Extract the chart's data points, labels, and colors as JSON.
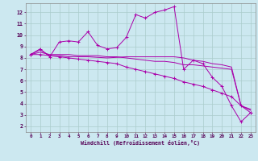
{
  "xlabel": "Windchill (Refroidissement éolien,°C)",
  "bg_color": "#cce8f0",
  "grid_color": "#aacccc",
  "line_color": "#aa00aa",
  "xlim": [
    -0.5,
    23.5
  ],
  "ylim": [
    1.5,
    12.8
  ],
  "yticks": [
    2,
    3,
    4,
    5,
    6,
    7,
    8,
    9,
    10,
    11,
    12
  ],
  "xticks": [
    0,
    1,
    2,
    3,
    4,
    5,
    6,
    7,
    8,
    9,
    10,
    11,
    12,
    13,
    14,
    15,
    16,
    17,
    18,
    19,
    20,
    21,
    22,
    23
  ],
  "series1_x": [
    0,
    1,
    2,
    3,
    4,
    5,
    6,
    7,
    8,
    9,
    10,
    11,
    12,
    13,
    14,
    15,
    16,
    17,
    18,
    19,
    20,
    21,
    22,
    23
  ],
  "series1_y": [
    8.3,
    8.8,
    8.1,
    9.4,
    9.5,
    9.4,
    10.3,
    9.1,
    8.8,
    8.9,
    9.8,
    11.8,
    11.5,
    12.0,
    12.2,
    12.5,
    7.0,
    7.8,
    7.5,
    6.3,
    5.5,
    3.8,
    2.4,
    3.2
  ],
  "series2_x": [
    0,
    1,
    2,
    3,
    4,
    5,
    6,
    7,
    8,
    9,
    10,
    11,
    12,
    13,
    14,
    15,
    16,
    17,
    18,
    19,
    20,
    21,
    22,
    23
  ],
  "series2_y": [
    8.3,
    8.7,
    8.2,
    8.2,
    8.1,
    8.1,
    8.1,
    8.05,
    8.0,
    8.05,
    8.1,
    8.1,
    8.1,
    8.1,
    8.1,
    8.1,
    8.0,
    7.8,
    7.7,
    7.5,
    7.4,
    7.2,
    3.8,
    3.5
  ],
  "series3_x": [
    0,
    1,
    2,
    3,
    4,
    5,
    6,
    7,
    8,
    9,
    10,
    11,
    12,
    13,
    14,
    15,
    16,
    17,
    18,
    19,
    20,
    21,
    22,
    23
  ],
  "series3_y": [
    8.3,
    8.5,
    8.3,
    8.3,
    8.3,
    8.2,
    8.2,
    8.2,
    8.1,
    8.1,
    8.0,
    7.9,
    7.8,
    7.7,
    7.7,
    7.6,
    7.4,
    7.4,
    7.3,
    7.2,
    7.1,
    7.0,
    3.8,
    3.4
  ],
  "series4_x": [
    0,
    1,
    2,
    3,
    4,
    5,
    6,
    7,
    8,
    9,
    10,
    11,
    12,
    13,
    14,
    15,
    16,
    17,
    18,
    19,
    20,
    21,
    22,
    23
  ],
  "series4_y": [
    8.3,
    8.3,
    8.2,
    8.1,
    8.0,
    7.9,
    7.8,
    7.7,
    7.6,
    7.5,
    7.2,
    7.0,
    6.8,
    6.6,
    6.4,
    6.2,
    5.9,
    5.7,
    5.5,
    5.2,
    4.9,
    4.6,
    3.8,
    3.2
  ]
}
